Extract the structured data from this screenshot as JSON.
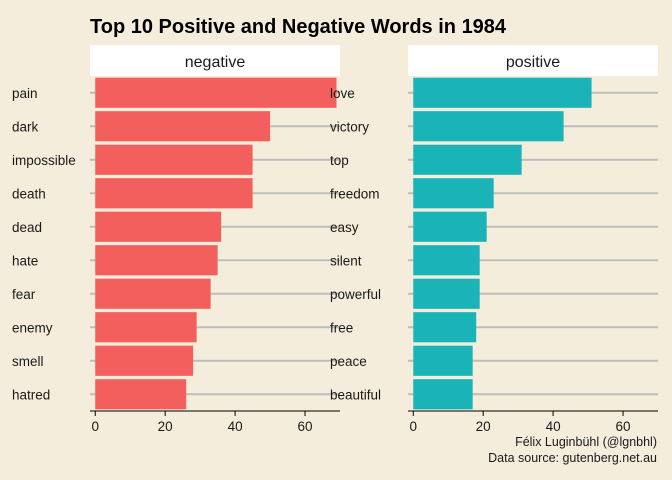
{
  "chart_data": {
    "type": "bar",
    "orientation": "horizontal",
    "title": "Top 10 Positive and Negative Words in 1984",
    "xlim": [
      -1.5,
      70
    ],
    "xticks": [
      0,
      20,
      40,
      60
    ],
    "grid": "horizontal major lines only",
    "legend": "none",
    "caption": [
      "Félix Luginbühl (@lgnbhl)",
      "Data source: gutenberg.net.au"
    ],
    "panels": [
      {
        "name": "negative",
        "color": "#f25f5c",
        "categories": [
          "pain",
          "dark",
          "impossible",
          "death",
          "dead",
          "hate",
          "fear",
          "enemy",
          "smell",
          "hatred"
        ],
        "values": [
          69,
          50,
          45,
          45,
          36,
          35,
          33,
          29,
          28,
          26
        ]
      },
      {
        "name": "positive",
        "color": "#19b3b8",
        "categories": [
          "love",
          "victory",
          "top",
          "freedom",
          "easy",
          "silent",
          "powerful",
          "free",
          "peace",
          "beautiful"
        ],
        "values": [
          51,
          43,
          31,
          23,
          21,
          19,
          19,
          18,
          17,
          17
        ]
      }
    ]
  }
}
